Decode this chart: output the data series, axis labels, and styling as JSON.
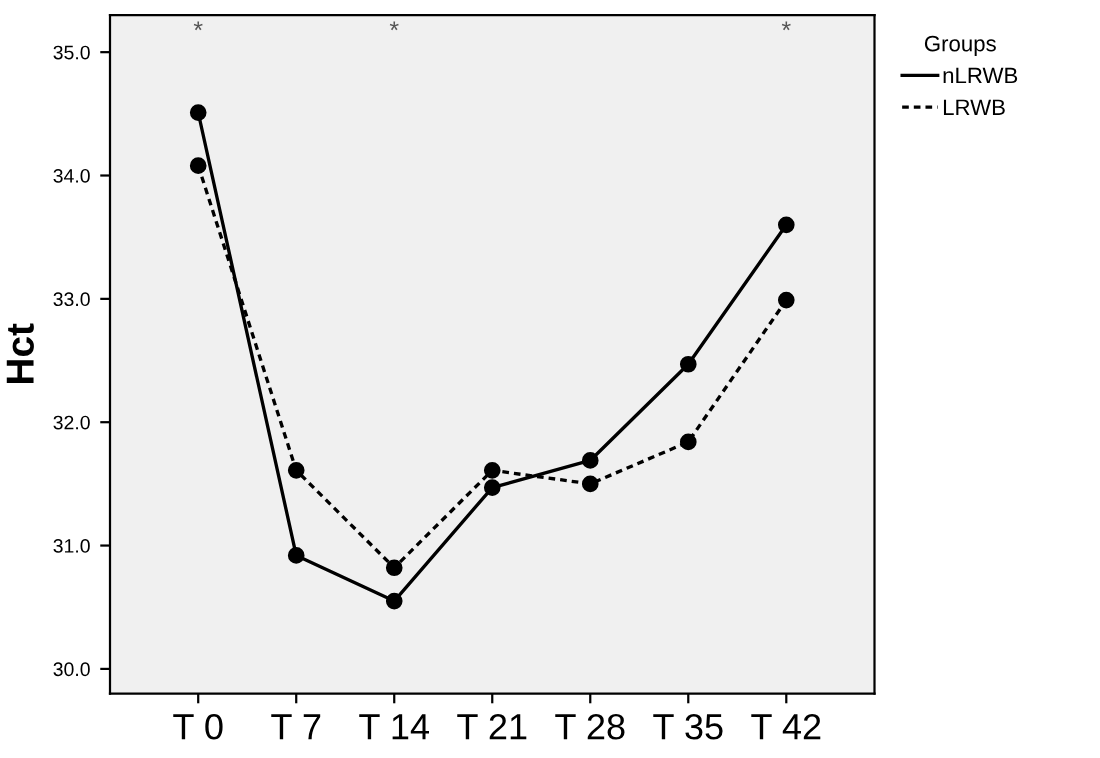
{
  "chart_data": {
    "type": "line",
    "ylabel": "Hct",
    "legend_title": "Groups",
    "legend": "top right",
    "marker": "circle",
    "grid": false,
    "categories": [
      "T 0",
      "T 7",
      "T 14",
      "T 21",
      "T 28",
      "T 35",
      "T 42"
    ],
    "series": [
      {
        "name": "nLRWB",
        "color": "#000000",
        "line_style": "solid",
        "values": [
          34.51,
          30.92,
          30.55,
          31.47,
          31.69,
          32.47,
          33.6
        ]
      },
      {
        "name": "LRWB",
        "color": "#000000",
        "line_style": "dotted",
        "values": [
          34.08,
          31.61,
          30.82,
          31.61,
          31.5,
          31.84,
          32.99
        ]
      }
    ],
    "ylim": [
      29.8,
      35.3
    ],
    "yticks": [
      {
        "value": 30,
        "label": "30.0"
      },
      {
        "value": 31,
        "label": "31.0"
      },
      {
        "value": 32,
        "label": "32.0"
      },
      {
        "value": 33,
        "label": "33.0"
      },
      {
        "value": 34,
        "label": "34.0"
      },
      {
        "value": 35,
        "label": "35.0"
      }
    ],
    "annotations": [
      "*",
      "*",
      "*"
    ]
  }
}
